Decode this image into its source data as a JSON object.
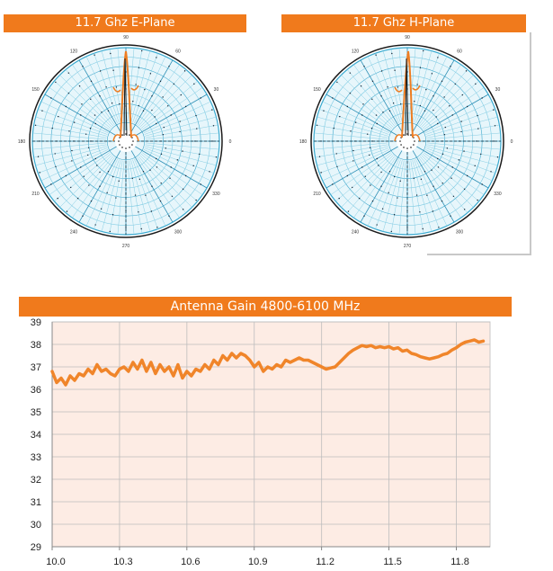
{
  "polar_e": {
    "title": "11.7 Ghz E-Plane"
  },
  "polar_h": {
    "title": "11.7 Ghz H-Plane"
  },
  "polar_angle_labels": [
    "90",
    "60",
    "30",
    "0",
    "330",
    "300",
    "270",
    "240",
    "210",
    "180",
    "150",
    "120"
  ],
  "chart_data": [
    {
      "type": "polar",
      "title": "11.7 Ghz E-Plane",
      "angle_labels": [
        "0",
        "30",
        "60",
        "90",
        "120",
        "150",
        "180",
        "210",
        "240",
        "270",
        "300",
        "330"
      ],
      "main_lobe_deg": 90
    },
    {
      "type": "polar",
      "title": "11.7 Ghz H-Plane",
      "angle_labels": [
        "0",
        "30",
        "60",
        "90",
        "120",
        "150",
        "180",
        "210",
        "240",
        "270",
        "300",
        "330"
      ],
      "main_lobe_deg": 90
    },
    {
      "type": "line",
      "title": "Antenna Gain 4800-6100 MHz",
      "xlim": [
        10.0,
        11.95
      ],
      "ylim": [
        29,
        39
      ],
      "xticks": [
        "10.0",
        "10.3",
        "10.6",
        "10.9",
        "11.2",
        "11.5",
        "11.8"
      ],
      "yticks": [
        "29",
        "30",
        "31",
        "32",
        "33",
        "34",
        "35",
        "36",
        "37",
        "38",
        "39"
      ],
      "grid": true,
      "series": [
        {
          "color": "#f0852a",
          "x": [
            10.0,
            10.02,
            10.04,
            10.06,
            10.08,
            10.1,
            10.12,
            10.14,
            10.16,
            10.18,
            10.2,
            10.22,
            10.24,
            10.26,
            10.28,
            10.3,
            10.32,
            10.34,
            10.36,
            10.38,
            10.4,
            10.42,
            10.44,
            10.46,
            10.48,
            10.5,
            10.52,
            10.54,
            10.56,
            10.58,
            10.6,
            10.62,
            10.64,
            10.66,
            10.68,
            10.7,
            10.72,
            10.74,
            10.76,
            10.78,
            10.8,
            10.82,
            10.84,
            10.86,
            10.88,
            10.9,
            10.92,
            10.94,
            10.96,
            10.98,
            11.0,
            11.02,
            11.04,
            11.06,
            11.08,
            11.1,
            11.12,
            11.14,
            11.16,
            11.18,
            11.2,
            11.22,
            11.24,
            11.26,
            11.28,
            11.3,
            11.32,
            11.34,
            11.36,
            11.38,
            11.4,
            11.42,
            11.44,
            11.46,
            11.48,
            11.5,
            11.52,
            11.54,
            11.56,
            11.58,
            11.6,
            11.62,
            11.64,
            11.66,
            11.68,
            11.7,
            11.72,
            11.74,
            11.76,
            11.78,
            11.8,
            11.82,
            11.84,
            11.86,
            11.88,
            11.9,
            11.92
          ],
          "y": [
            36.8,
            36.3,
            36.5,
            36.2,
            36.6,
            36.4,
            36.7,
            36.6,
            36.9,
            36.7,
            37.1,
            36.8,
            36.9,
            36.7,
            36.6,
            36.9,
            37.0,
            36.8,
            37.2,
            36.9,
            37.3,
            36.8,
            37.2,
            36.7,
            37.1,
            36.8,
            37.0,
            36.6,
            37.1,
            36.5,
            36.8,
            36.6,
            36.9,
            36.8,
            37.1,
            36.9,
            37.3,
            37.1,
            37.5,
            37.3,
            37.6,
            37.4,
            37.6,
            37.5,
            37.3,
            37.0,
            37.2,
            36.8,
            37.0,
            36.9,
            37.1,
            37.0,
            37.3,
            37.2,
            37.3,
            37.4,
            37.3,
            37.3,
            37.2,
            37.1,
            37.0,
            36.9,
            36.95,
            37.0,
            37.2,
            37.4,
            37.6,
            37.75,
            37.85,
            37.95,
            37.9,
            37.95,
            37.85,
            37.9,
            37.85,
            37.9,
            37.8,
            37.85,
            37.7,
            37.75,
            37.6,
            37.55,
            37.45,
            37.4,
            37.35,
            37.4,
            37.45,
            37.55,
            37.6,
            37.75,
            37.85,
            38.0,
            38.1,
            38.15,
            38.2,
            38.1,
            38.15
          ]
        }
      ]
    }
  ]
}
